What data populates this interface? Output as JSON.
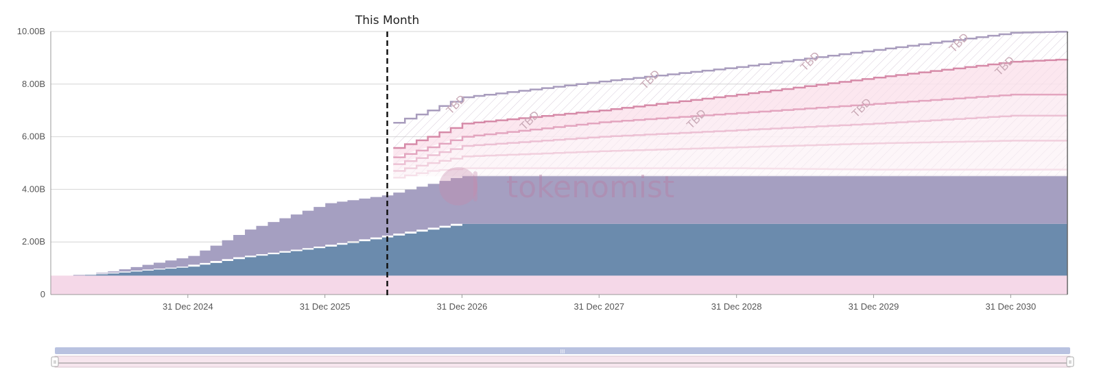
{
  "chart_data": {
    "type": "area",
    "stacked": true,
    "title": "",
    "xlabel": "",
    "ylabel": "",
    "x_domain": [
      "2024-01-01",
      "2031-05-31"
    ],
    "ylim": [
      0,
      10000000000
    ],
    "y_ticks": [
      {
        "value": 0,
        "label": "0"
      },
      {
        "value": 2000000000,
        "label": "2.00B"
      },
      {
        "value": 4000000000,
        "label": "4.00B"
      },
      {
        "value": 6000000000,
        "label": "6.00B"
      },
      {
        "value": 8000000000,
        "label": "8.00B"
      },
      {
        "value": 10000000000,
        "label": "10.00B"
      }
    ],
    "x_ticks": [
      {
        "date": "2024-12-31",
        "label": "31 Dec 2024"
      },
      {
        "date": "2025-12-31",
        "label": "31 Dec 2025"
      },
      {
        "date": "2026-12-31",
        "label": "31 Dec 2026"
      },
      {
        "date": "2027-12-31",
        "label": "31 Dec 2027"
      },
      {
        "date": "2028-12-31",
        "label": "31 Dec 2028"
      },
      {
        "date": "2029-12-31",
        "label": "31 Dec 2029"
      },
      {
        "date": "2030-12-31",
        "label": "31 Dec 2030"
      }
    ],
    "grid": true,
    "legend": "none",
    "marker": {
      "date": "2026-06-15",
      "label": "This Month"
    },
    "series": [
      {
        "color": "#f5d8e8",
        "values": [
          {
            "date": "2024-01-01",
            "value": 720000000
          },
          {
            "date": "2031-05-31",
            "value": 720000000
          }
        ]
      },
      {
        "color": "#6b8bad",
        "values": [
          {
            "date": "2024-03-01",
            "value": 0
          },
          {
            "date": "2024-06-01",
            "value": 80000000
          },
          {
            "date": "2024-12-31",
            "value": 340000000
          },
          {
            "date": "2025-06-01",
            "value": 700000000
          },
          {
            "date": "2025-12-31",
            "value": 1100000000
          },
          {
            "date": "2026-06-01",
            "value": 1450000000
          },
          {
            "date": "2027-01-01",
            "value": 1970000000
          },
          {
            "date": "2031-05-31",
            "value": 1970000000
          }
        ]
      },
      {
        "color": "#a59fc1",
        "values": [
          {
            "date": "2024-03-01",
            "value": 0
          },
          {
            "date": "2024-06-01",
            "value": 80000000
          },
          {
            "date": "2024-12-31",
            "value": 400000000
          },
          {
            "date": "2025-06-01",
            "value": 1050000000
          },
          {
            "date": "2025-12-31",
            "value": 1650000000
          },
          {
            "date": "2026-06-01",
            "value": 1600000000
          },
          {
            "date": "2027-01-01",
            "value": 1850000000
          },
          {
            "date": "2031-05-31",
            "value": 1850000000
          }
        ]
      }
    ],
    "projected_series": [
      {
        "label": "TBD",
        "stroke": "#a89cbd",
        "values": [
          {
            "date": "2026-06-15",
            "value": 6450000000
          },
          {
            "date": "2026-10-01",
            "value": 7000000000
          },
          {
            "date": "2027-01-01",
            "value": 7500000000
          },
          {
            "date": "2028-01-01",
            "value": 8100000000
          },
          {
            "date": "2029-01-01",
            "value": 8650000000
          },
          {
            "date": "2030-01-01",
            "value": 9300000000
          },
          {
            "date": "2031-01-01",
            "value": 9950000000
          },
          {
            "date": "2031-05-31",
            "value": 10000000000
          }
        ]
      },
      {
        "label": "TBD",
        "stroke": "#d68aa8",
        "values": [
          {
            "date": "2026-06-15",
            "value": 5500000000
          },
          {
            "date": "2026-10-01",
            "value": 6000000000
          },
          {
            "date": "2027-01-01",
            "value": 6500000000
          },
          {
            "date": "2028-01-01",
            "value": 7000000000
          },
          {
            "date": "2029-01-01",
            "value": 7600000000
          },
          {
            "date": "2030-01-01",
            "value": 8250000000
          },
          {
            "date": "2031-01-01",
            "value": 8850000000
          },
          {
            "date": "2031-05-31",
            "value": 8950000000
          }
        ]
      },
      {
        "label": "TBD",
        "stroke": "#e3a5bf",
        "values": [
          {
            "date": "2026-06-15",
            "value": 5150000000
          },
          {
            "date": "2026-10-01",
            "value": 5600000000
          },
          {
            "date": "2027-01-01",
            "value": 6000000000
          },
          {
            "date": "2028-01-01",
            "value": 6550000000
          },
          {
            "date": "2029-01-01",
            "value": 6900000000
          },
          {
            "date": "2030-01-01",
            "value": 7250000000
          },
          {
            "date": "2031-01-01",
            "value": 7600000000
          },
          {
            "date": "2031-05-31",
            "value": 7600000000
          }
        ]
      },
      {
        "label": "TBD",
        "stroke": "#ecc0d3",
        "values": [
          {
            "date": "2026-06-15",
            "value": 4900000000
          },
          {
            "date": "2026-10-01",
            "value": 5300000000
          },
          {
            "date": "2027-01-01",
            "value": 5650000000
          },
          {
            "date": "2028-01-01",
            "value": 6000000000
          },
          {
            "date": "2029-01-01",
            "value": 6250000000
          },
          {
            "date": "2030-01-01",
            "value": 6500000000
          },
          {
            "date": "2031-01-01",
            "value": 6800000000
          },
          {
            "date": "2031-05-31",
            "value": 6800000000
          }
        ]
      },
      {
        "label": "TBD",
        "stroke": "#f1cfdd",
        "values": [
          {
            "date": "2026-06-15",
            "value": 4650000000
          },
          {
            "date": "2026-10-01",
            "value": 5000000000
          },
          {
            "date": "2027-01-01",
            "value": 5250000000
          },
          {
            "date": "2028-01-01",
            "value": 5450000000
          },
          {
            "date": "2029-01-01",
            "value": 5600000000
          },
          {
            "date": "2030-01-01",
            "value": 5750000000
          },
          {
            "date": "2031-01-01",
            "value": 5850000000
          },
          {
            "date": "2031-05-31",
            "value": 5850000000
          }
        ]
      },
      {
        "label": "TBD",
        "stroke": "#f6e0e9",
        "values": [
          {
            "date": "2026-06-15",
            "value": 4400000000
          },
          {
            "date": "2026-10-01",
            "value": 4700000000
          },
          {
            "date": "2027-01-01",
            "value": 4800000000
          },
          {
            "date": "2028-01-01",
            "value": 4800000000
          },
          {
            "date": "2029-01-01",
            "value": 4800000000
          },
          {
            "date": "2030-01-01",
            "value": 4750000000
          },
          {
            "date": "2031-01-01",
            "value": 4750000000
          },
          {
            "date": "2031-05-31",
            "value": 4750000000
          }
        ]
      }
    ]
  },
  "watermark": {
    "text": "tokenomist"
  },
  "navigator": {
    "handle_glyph": "III",
    "left_handle_glyph": "II",
    "right_handle_glyph": "II"
  }
}
